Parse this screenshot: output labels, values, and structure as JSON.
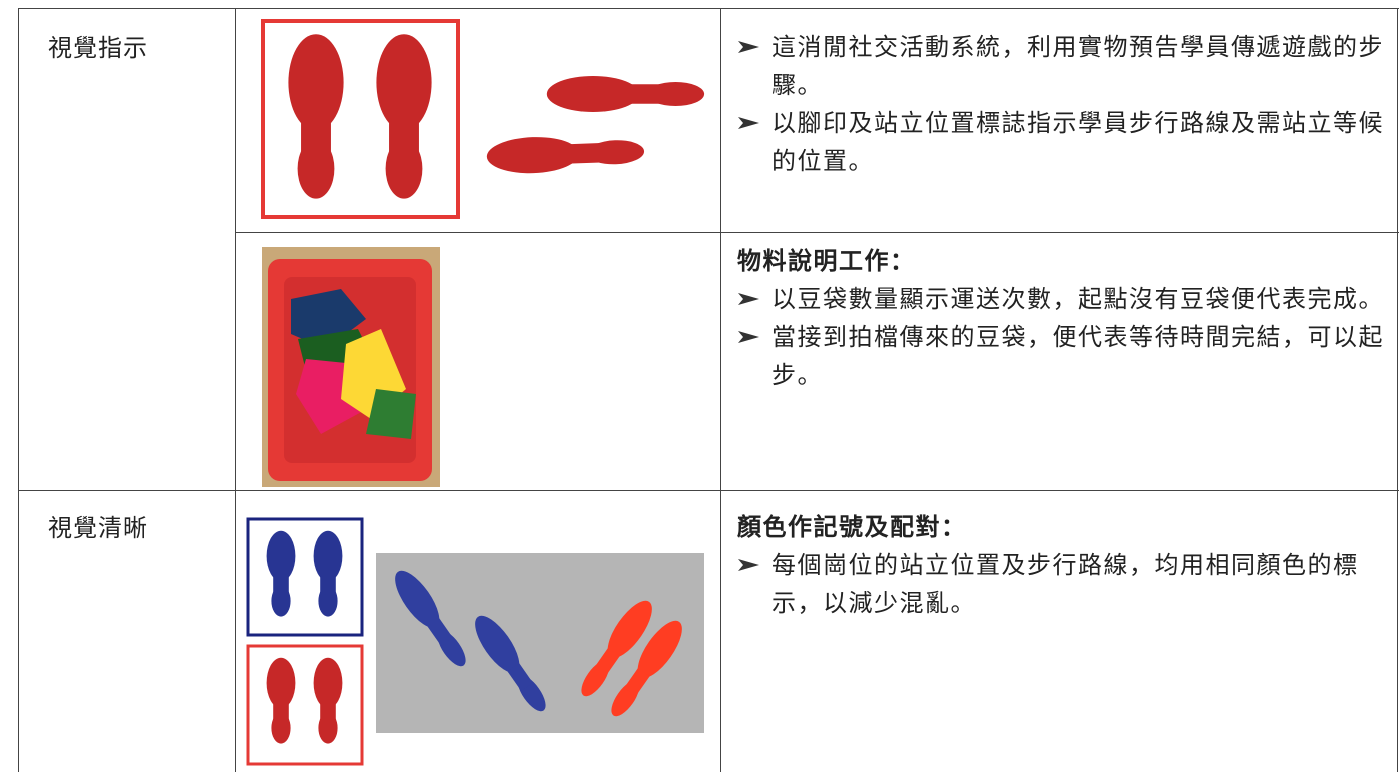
{
  "table": {
    "rows": [
      {
        "label": "視覺指示",
        "cells": [
          {
            "bullets": [
              "這消閒社交活動系統，利用實物預告學員傳遞遊戲的步驟。",
              "以腳印及站立位置標誌指示學員步行路線及需站立等候的位置。"
            ]
          },
          {
            "heading": "物料說明工作：",
            "bullets": [
              "以豆袋數量顯示運送次數，起點沒有豆袋便代表完成。",
              "當接到拍檔傳來的豆袋，便代表等待時間完結，可以起步。"
            ]
          }
        ]
      },
      {
        "label": "視覺清晰",
        "cells": [
          {
            "heading": "顏色作記號及配對：",
            "bullets": [
              "每個崗位的站立位置及步行路線，均用相同顏色的標示，以減少混亂。"
            ]
          }
        ]
      }
    ]
  }
}
